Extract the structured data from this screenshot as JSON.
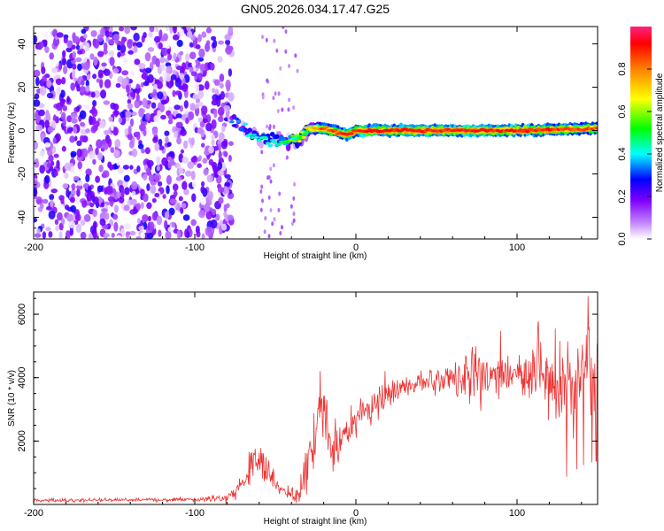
{
  "chart_data": [
    {
      "type": "heatmap",
      "title": "GN05.2026.034.17.47.G25",
      "xlabel": "Height of straight line (km)",
      "ylabel": "Frequency (Hz)",
      "xlim": [
        -200,
        150
      ],
      "ylim": [
        -50,
        48
      ],
      "xticks": [
        -200,
        -100,
        0,
        100
      ],
      "yticks": [
        -40,
        -20,
        0,
        20,
        40
      ],
      "colorbar": {
        "label": "Normalized spectral amplitude",
        "range": [
          0,
          1
        ],
        "ticks": [
          "0.0",
          "0.2",
          "0.4",
          "0.6",
          "0.8"
        ],
        "colors": [
          "#ffffff",
          "#8000ff",
          "#0000ff",
          "#00ffff",
          "#00ff00",
          "#ffff00",
          "#ff8000",
          "#ff0000",
          "#ff00a0"
        ]
      },
      "noise_region": {
        "x": [
          -200,
          -77
        ],
        "amplitude": 0.25
      },
      "signal_track": {
        "x": [
          -77,
          -70,
          -65,
          -60,
          -55,
          -50,
          -45,
          -40,
          -35,
          -30,
          -20,
          -10,
          -5,
          0,
          10,
          50,
          100,
          150
        ],
        "y": [
          5,
          2,
          -2,
          -3,
          -5,
          -4,
          -5,
          -5,
          -4,
          1,
          1,
          -1,
          -2,
          0,
          0,
          0,
          0,
          1
        ],
        "amplitude": [
          0.3,
          0.35,
          0.4,
          0.45,
          0.4,
          0.4,
          0.5,
          0.55,
          0.6,
          0.7,
          0.85,
          0.85,
          0.9,
          0.9,
          0.9,
          0.9,
          0.9,
          0.85
        ]
      }
    },
    {
      "type": "line",
      "xlabel": "Height of straight line (km)",
      "ylabel": "SNR (10 * v/v)",
      "xlim": [
        -200,
        150
      ],
      "ylim": [
        0,
        6700
      ],
      "xticks": [
        -200,
        -100,
        0,
        100
      ],
      "yticks": [
        2000,
        4000,
        6000
      ],
      "series": [
        {
          "name": "SNR",
          "color": "#ee3333",
          "x": [
            -200,
            -150,
            -100,
            -80,
            -75,
            -70,
            -65,
            -60,
            -55,
            -50,
            -45,
            -40,
            -35,
            -30,
            -25,
            -21,
            -15,
            -10,
            -5,
            0,
            5,
            10,
            15,
            20,
            30,
            40,
            50,
            60,
            70,
            80,
            90,
            100,
            110,
            120,
            130,
            140,
            150
          ],
          "y": [
            130,
            140,
            150,
            200,
            400,
            700,
            1200,
            1500,
            1000,
            600,
            400,
            350,
            380,
            1500,
            2000,
            3300,
            1700,
            2000,
            2300,
            2600,
            2900,
            3100,
            3300,
            3500,
            3700,
            3850,
            3950,
            4000,
            4050,
            4100,
            4100,
            4100,
            4050,
            4000,
            4000,
            3950,
            3900
          ],
          "spread": [
            50,
            50,
            60,
            120,
            200,
            300,
            450,
            550,
            450,
            250,
            150,
            150,
            300,
            700,
            800,
            900,
            600,
            500,
            500,
            500,
            450,
            450,
            400,
            380,
            350,
            350,
            400,
            550,
            700,
            900,
            700,
            600,
            700,
            1100,
            1500,
            1300,
            1200
          ]
        }
      ]
    }
  ]
}
